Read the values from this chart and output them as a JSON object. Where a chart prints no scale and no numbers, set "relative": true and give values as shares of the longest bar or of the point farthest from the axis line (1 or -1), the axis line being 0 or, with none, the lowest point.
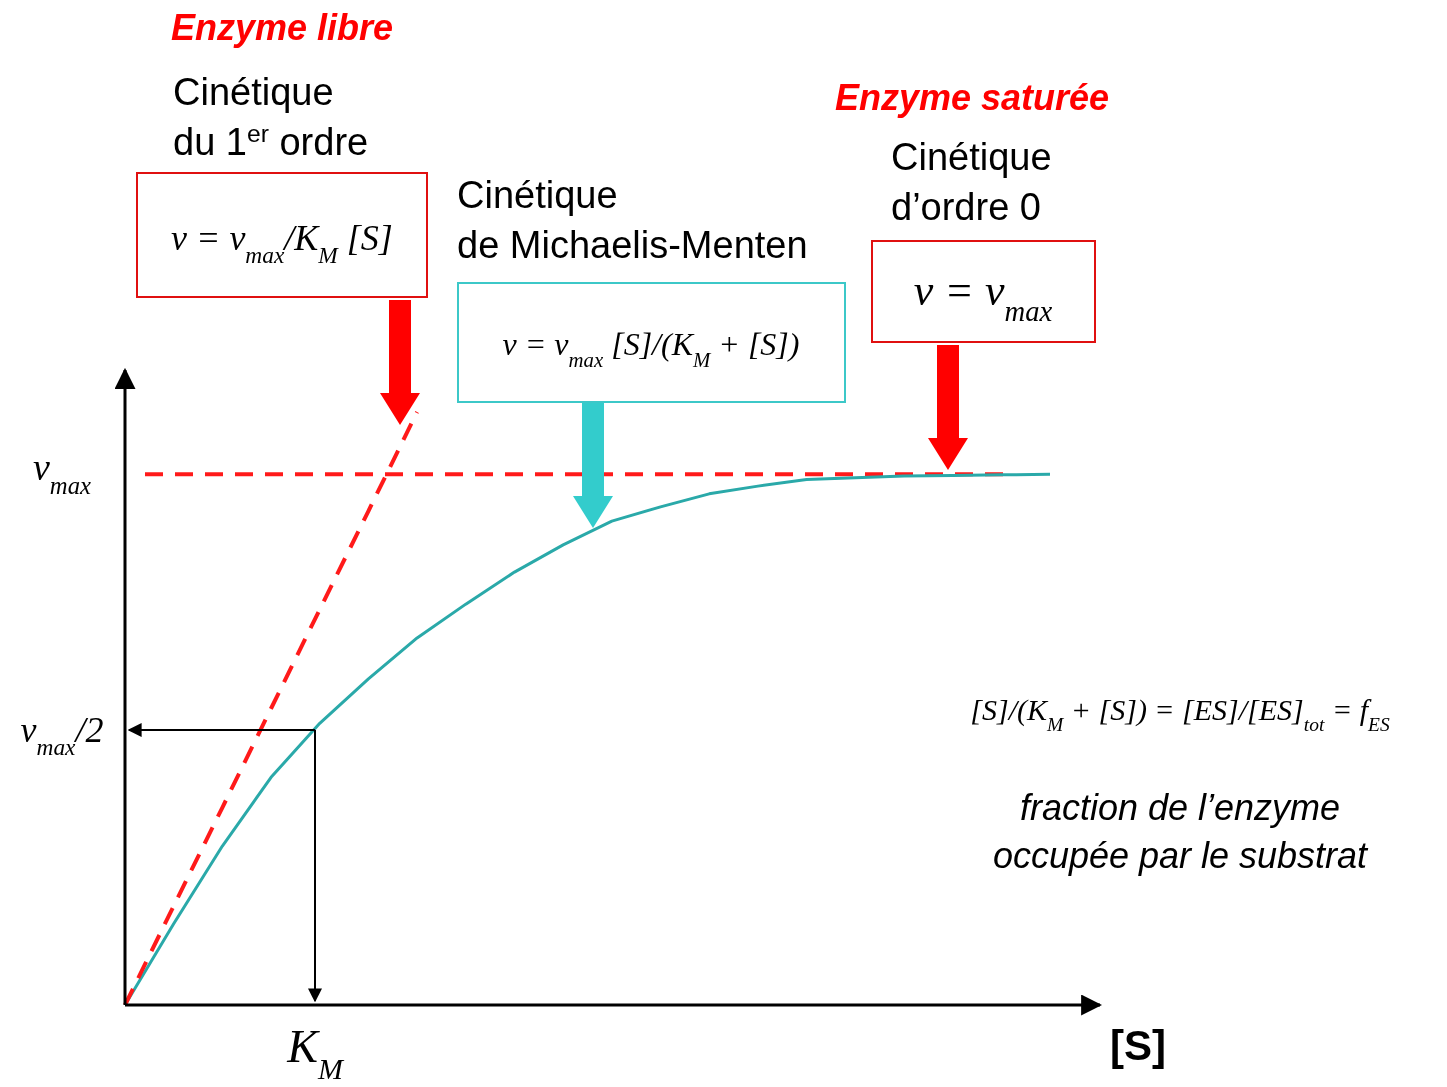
{
  "chart_data": {
    "type": "line",
    "relative": true,
    "xlabel": "[S]",
    "marker": "none",
    "categories": [
      null,
      null,
      null,
      null,
      null,
      null,
      null,
      null,
      null,
      null,
      null,
      null,
      null,
      null,
      null,
      null,
      null,
      null,
      null,
      null
    ],
    "series": [
      {
        "color": "#2aa9a9",
        "line_style": "solid",
        "values": [
          0,
          0.137,
          0.268,
          0.384,
          0.475,
          0.55,
          0.619,
          0.676,
          0.73,
          0.776,
          0.816,
          0.84,
          0.862,
          0.875,
          0.886,
          0.889,
          0.892,
          0.893,
          0.894,
          0.895
        ]
      },
      {
        "color": "#ff1a1a",
        "line_style": "dashed",
        "values": [
          0,
          0.167,
          0.333,
          0.5,
          0.667,
          0.833,
          1,
          null,
          null,
          null,
          null,
          null,
          null,
          null,
          null,
          null,
          null,
          null,
          null,
          null
        ]
      }
    ],
    "ref_lines": [
      {
        "axis": "y",
        "value": 0.895,
        "color": "#ff1a1a",
        "line_style": "dashed"
      }
    ],
    "annotations": [
      "Enzyme libre",
      "Cinétique\ndu 1$^{er}$ ordre",
      "v = v$_{max}$/K$_{M}$ [S]",
      "Cinétique\nde Michaelis-Menten",
      "v = v$_{max}$ [S]/(K$_{M}$ + [S])",
      "Enzyme saturée",
      "Cinétique\nd’ordre 0",
      "v = v$_{max}$",
      "[S]/(K$_{M}$ + [S]) = [ES]/[ES]$_{tot}$ = f$_{ES}$",
      "fraction de l’enzyme\noccupée par le substrat",
      "v$_{max}$",
      "v$_{max}$/2",
      "K$_{M}$"
    ]
  }
}
